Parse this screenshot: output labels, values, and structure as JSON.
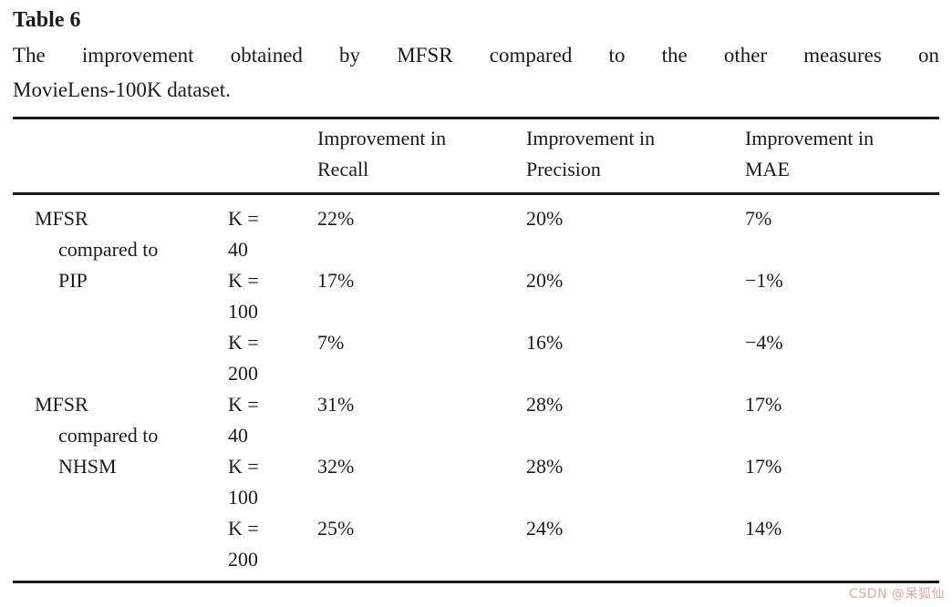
{
  "page": {
    "title": "Table 6",
    "caption_lines": [
      "The improvement obtained by MFSR compared to the other measures on",
      "MovieLens-100K dataset."
    ]
  },
  "table": {
    "column_headers": [
      "Improvement in\nRecall",
      "Improvement in\nPrecision",
      "Improvement in\nMAE"
    ],
    "groups": [
      {
        "label": "MFSR\ncompared to\nPIP",
        "rows": [
          {
            "k": "K =\n40",
            "recall": "22%",
            "precision": "20%",
            "mae": "7%"
          },
          {
            "k": "K =\n100",
            "recall": "17%",
            "precision": "20%",
            "mae": "−1%"
          },
          {
            "k": "K =\n200",
            "recall": "7%",
            "precision": "16%",
            "mae": "−4%"
          }
        ]
      },
      {
        "label": "MFSR\ncompared to\nNHSM",
        "rows": [
          {
            "k": "K =\n40",
            "recall": "31%",
            "precision": "28%",
            "mae": "17%"
          },
          {
            "k": "K =\n100",
            "recall": "32%",
            "precision": "28%",
            "mae": "17%"
          },
          {
            "k": "K =\n200",
            "recall": "25%",
            "precision": "24%",
            "mae": "14%"
          }
        ]
      }
    ]
  },
  "watermark": {
    "text": "CSDN @呆狐仙",
    "color": "#d9a8a8"
  },
  "colors": {
    "text": "#1b1b1b",
    "rule": "#1b1b1b",
    "background": "#ffffff"
  }
}
